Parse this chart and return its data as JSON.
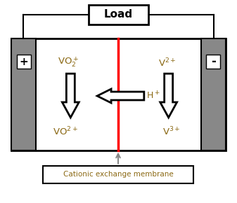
{
  "bg_color": "#ffffff",
  "border_color": "#000000",
  "electrode_color": "#888888",
  "membrane_color": "#ff0000",
  "text_color": "#000000",
  "species_color": "#8B6914",
  "h_color": "#8B6914",
  "load_color": "#000000",
  "membrane_label_color": "#8B6914",
  "arrow_up_color": "#888888",
  "load_text": "Load",
  "membrane_label": "Cationic exchange membrane",
  "plus_sign": "+",
  "minus_sign": "-"
}
